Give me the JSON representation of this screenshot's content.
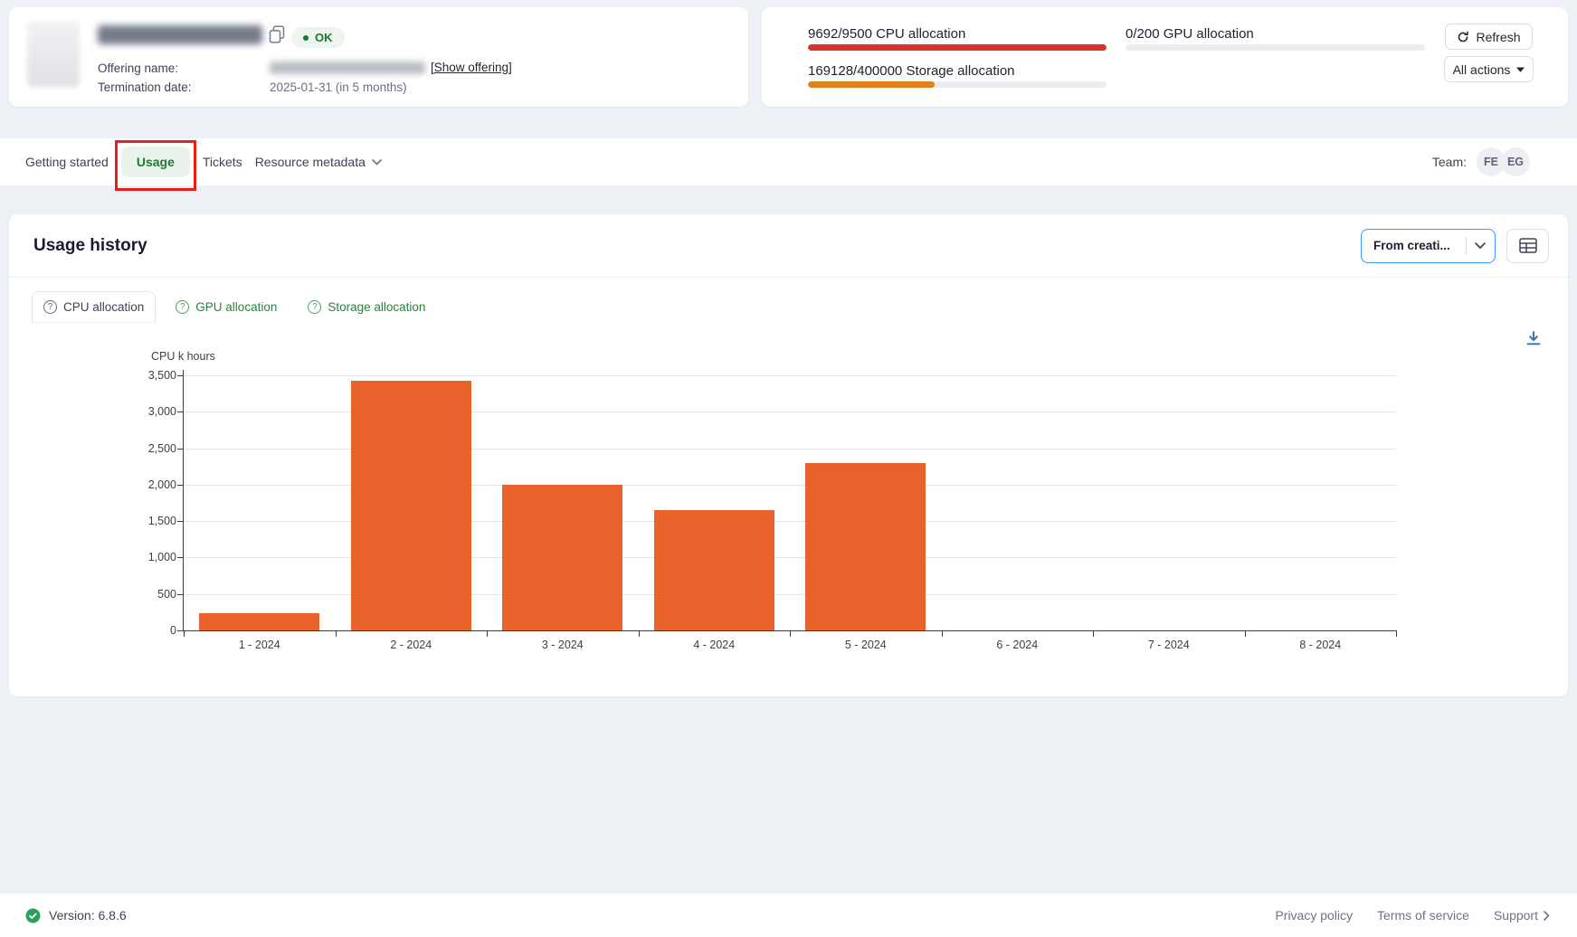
{
  "resource_header": {
    "status_badge": "OK",
    "offering_label": "Offering name:",
    "show_offering_link": "[Show offering]",
    "termination_label": "Termination date:",
    "termination_value": "2025-01-31 (in 5 months)"
  },
  "allocations": {
    "cpu": {
      "text": "9692/9500 CPU allocation",
      "percent": 100,
      "color": "#d9342b"
    },
    "gpu": {
      "text": "0/200 GPU allocation",
      "percent": 0,
      "color": "#e0821a"
    },
    "storage": {
      "text": "169128/400000 Storage allocation",
      "percent": 42.3,
      "color": "#e0821a"
    }
  },
  "actions": {
    "refresh": "Refresh",
    "all_actions": "All actions"
  },
  "nav": {
    "tabs": [
      "Getting started",
      "Usage",
      "Tickets",
      "Resource metadata"
    ],
    "active_tab": "Usage",
    "team_label": "Team:",
    "avatars": [
      "FE",
      "EG"
    ]
  },
  "annotation": {
    "highlighted_tab": "Usage",
    "color": "#e3211a"
  },
  "usage": {
    "title": "Usage history",
    "range_selector": "From creati...",
    "chart_tabs": [
      "CPU allocation",
      "GPU allocation",
      "Storage allocation"
    ],
    "active_chart_tab": "CPU allocation"
  },
  "chart_data": {
    "type": "bar",
    "title": "",
    "ylabel": "CPU k hours",
    "xlabel": "",
    "categories": [
      "1 - 2024",
      "2 - 2024",
      "3 - 2024",
      "4 - 2024",
      "5 - 2024",
      "6 - 2024",
      "7 - 2024",
      "8 - 2024"
    ],
    "values": [
      240,
      3420,
      2000,
      1650,
      2300,
      0,
      0,
      0
    ],
    "ylim": [
      0,
      3500
    ],
    "ytick_step": 500,
    "bar_color": "#e8632c",
    "grid": true,
    "legend": false
  },
  "footer": {
    "version": "Version: 6.8.6",
    "links": [
      "Privacy policy",
      "Terms of service",
      "Support"
    ]
  }
}
